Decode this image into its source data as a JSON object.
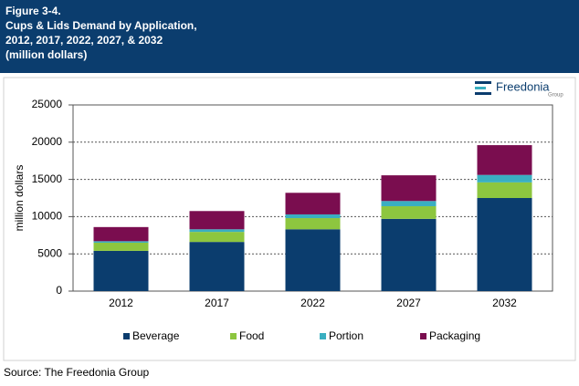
{
  "chart_data": {
    "type": "stacked-bar",
    "title_lines": [
      "Figure 3-4.",
      "Cups & Lids Demand by Application,",
      "2012, 2017, 2022, 2027, & 2032",
      "(million dollars)"
    ],
    "logo": {
      "name": "Freedonia",
      "sub": "Group"
    },
    "y_label": "million dollars",
    "source": "Source: The Freedonia Group",
    "categories": [
      "2012",
      "2017",
      "2022",
      "2027",
      "2032"
    ],
    "series": [
      {
        "name": "Beverage",
        "color": "#0b3d6e",
        "values": [
          5400,
          6600,
          8300,
          9700,
          12500
        ]
      },
      {
        "name": "Food",
        "color": "#8dc63f",
        "values": [
          1100,
          1350,
          1500,
          1700,
          2100
        ]
      },
      {
        "name": "Portion",
        "color": "#3aafc1",
        "values": [
          200,
          350,
          500,
          700,
          1000
        ]
      },
      {
        "name": "Packaging",
        "color": "#7a0d4f",
        "values": [
          1900,
          2450,
          2900,
          3450,
          4000
        ]
      }
    ],
    "ylim": [
      0,
      25000
    ],
    "yticks": [
      0,
      5000,
      10000,
      15000,
      20000,
      25000
    ],
    "grid": true
  }
}
